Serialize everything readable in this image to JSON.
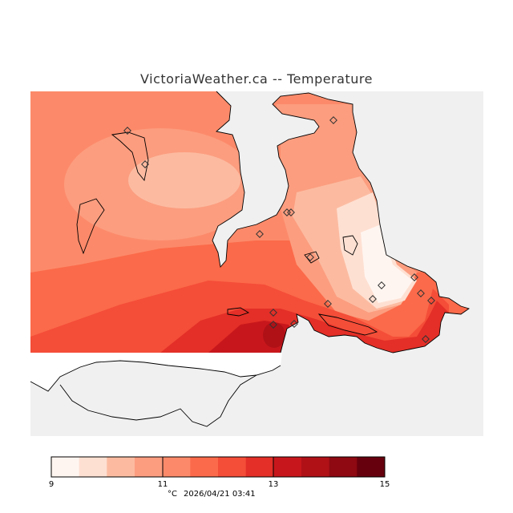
{
  "title": "VictoriaWeather.ca -- Temperature",
  "colors": {
    "water": "#f0f0f0",
    "coast": "#000000",
    "bins": [
      "#fff5f0",
      "#fee0d2",
      "#fcbba1",
      "#fc9d7f",
      "#fc8a6a",
      "#fb6a4a",
      "#f44d38",
      "#e32f27",
      "#c8171c",
      "#af1117",
      "#8e0912",
      "#67000d"
    ]
  },
  "colorbar": {
    "min": 9,
    "max": 15,
    "tick_labels": [
      "9",
      "11",
      "13",
      "15"
    ],
    "units_label": "°C",
    "timestamp": "2026/04/21 03:41"
  },
  "stations_count_visible": 16
}
